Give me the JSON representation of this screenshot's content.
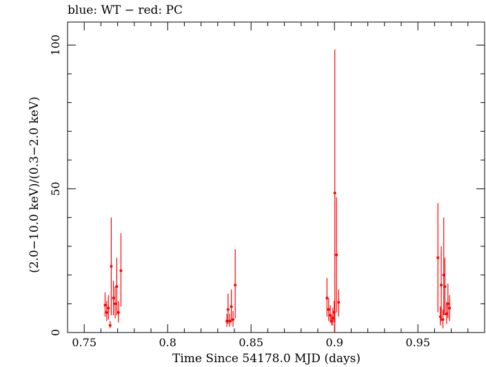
{
  "chart_data": {
    "type": "scatter",
    "title": "blue: WT − red: PC",
    "xlabel": "Time Since 54178.0 MJD (days)",
    "ylabel": "(2.0−10.0 keV)/(0.3−2.0 keV)",
    "xlim": [
      0.74,
      0.99
    ],
    "ylim": [
      0,
      108
    ],
    "xticks": [
      0.75,
      0.8,
      0.85,
      0.9,
      0.95
    ],
    "xtick_labels": [
      "0.75",
      "0.8",
      "0.85",
      "0.9",
      "0.95"
    ],
    "yticks": [
      0,
      50,
      100
    ],
    "ytick_labels": [
      "0",
      "50",
      "100"
    ],
    "grid": false,
    "colors": {
      "WT": "#0000ff",
      "PC": "#ff0000",
      "axes": "#000000"
    },
    "series": [
      {
        "name": "PC",
        "color": "#ff0000",
        "points": [
          {
            "x": 0.7625,
            "y": 9.5,
            "ylo": 5.5,
            "yhi": 14.0
          },
          {
            "x": 0.7635,
            "y": 7.0,
            "ylo": 4.0,
            "yhi": 11.0
          },
          {
            "x": 0.7645,
            "y": 8.5,
            "ylo": 4.5,
            "yhi": 13.0
          },
          {
            "x": 0.7655,
            "y": 2.5,
            "ylo": 1.5,
            "yhi": 4.0
          },
          {
            "x": 0.7662,
            "y": 23.0,
            "ylo": 6.0,
            "yhi": 40.0
          },
          {
            "x": 0.7675,
            "y": 12.0,
            "ylo": 6.0,
            "yhi": 18.0
          },
          {
            "x": 0.7685,
            "y": 10.0,
            "ylo": 5.0,
            "yhi": 16.0
          },
          {
            "x": 0.7695,
            "y": 16.0,
            "ylo": 6.0,
            "yhi": 26.0
          },
          {
            "x": 0.7705,
            "y": 7.0,
            "ylo": 3.5,
            "yhi": 11.0
          },
          {
            "x": 0.772,
            "y": 21.5,
            "ylo": 9.0,
            "yhi": 34.5
          },
          {
            "x": 0.8355,
            "y": 4.0,
            "ylo": 2.0,
            "yhi": 6.5
          },
          {
            "x": 0.8362,
            "y": 8.0,
            "ylo": 3.0,
            "yhi": 13.5
          },
          {
            "x": 0.8372,
            "y": 4.0,
            "ylo": 2.0,
            "yhi": 6.5
          },
          {
            "x": 0.8382,
            "y": 9.0,
            "ylo": 3.5,
            "yhi": 15.0
          },
          {
            "x": 0.8392,
            "y": 4.5,
            "ylo": 2.0,
            "yhi": 7.5
          },
          {
            "x": 0.8405,
            "y": 16.5,
            "ylo": 5.0,
            "yhi": 29.0
          },
          {
            "x": 0.8955,
            "y": 12.0,
            "ylo": 5.5,
            "yhi": 19.0
          },
          {
            "x": 0.8965,
            "y": 8.0,
            "ylo": 4.0,
            "yhi": 12.0
          },
          {
            "x": 0.8975,
            "y": 6.0,
            "ylo": 3.5,
            "yhi": 9.5
          },
          {
            "x": 0.8982,
            "y": 4.0,
            "ylo": 2.5,
            "yhi": 6.0
          },
          {
            "x": 0.899,
            "y": 5.0,
            "ylo": 2.5,
            "yhi": 8.5
          },
          {
            "x": 0.8998,
            "y": 7.0,
            "ylo": 3.5,
            "yhi": 11.0
          },
          {
            "x": 0.9002,
            "y": 48.5,
            "ylo": 0.0,
            "yhi": 98.5
          },
          {
            "x": 0.9012,
            "y": 27.0,
            "ylo": 7.0,
            "yhi": 47.0
          },
          {
            "x": 0.9025,
            "y": 10.5,
            "ylo": 5.5,
            "yhi": 15.0
          },
          {
            "x": 0.962,
            "y": 26.0,
            "ylo": 7.0,
            "yhi": 45.0
          },
          {
            "x": 0.9635,
            "y": 5.5,
            "ylo": 2.5,
            "yhi": 9.0
          },
          {
            "x": 0.964,
            "y": 16.5,
            "ylo": 4.0,
            "yhi": 30.0
          },
          {
            "x": 0.965,
            "y": 4.5,
            "ylo": 1.5,
            "yhi": 8.0
          },
          {
            "x": 0.9655,
            "y": 20.0,
            "ylo": 6.0,
            "yhi": 40.0
          },
          {
            "x": 0.9662,
            "y": 16.0,
            "ylo": 6.0,
            "yhi": 26.0
          },
          {
            "x": 0.9672,
            "y": 6.5,
            "ylo": 3.0,
            "yhi": 10.5
          },
          {
            "x": 0.968,
            "y": 10.0,
            "ylo": 5.0,
            "yhi": 17.0
          },
          {
            "x": 0.969,
            "y": 8.5,
            "ylo": 4.0,
            "yhi": 13.0
          }
        ]
      }
    ]
  }
}
